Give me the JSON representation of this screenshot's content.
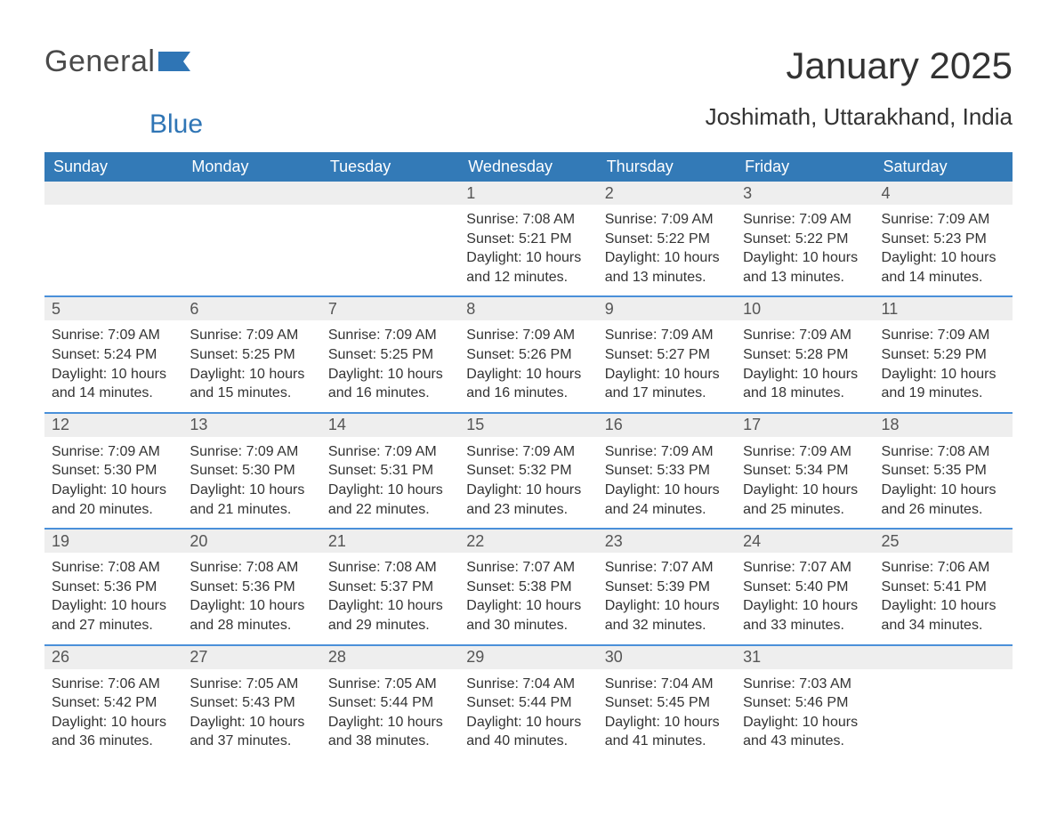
{
  "logo": {
    "line1": "General",
    "line2": "Blue"
  },
  "title": "January 2025",
  "location": "Joshimath, Uttarakhand, India",
  "colors": {
    "header_bg": "#337ab7",
    "header_text": "#ffffff",
    "row_divider": "#4a90d9",
    "date_bar_bg": "#eeeeee",
    "logo_blue": "#2f75b5"
  },
  "weekdays": [
    "Sunday",
    "Monday",
    "Tuesday",
    "Wednesday",
    "Thursday",
    "Friday",
    "Saturday"
  ],
  "weeks": [
    [
      {
        "date": "",
        "sunrise": "",
        "sunset": "",
        "daylight1": "",
        "daylight2": ""
      },
      {
        "date": "",
        "sunrise": "",
        "sunset": "",
        "daylight1": "",
        "daylight2": ""
      },
      {
        "date": "",
        "sunrise": "",
        "sunset": "",
        "daylight1": "",
        "daylight2": ""
      },
      {
        "date": "1",
        "sunrise": "Sunrise: 7:08 AM",
        "sunset": "Sunset: 5:21 PM",
        "daylight1": "Daylight: 10 hours",
        "daylight2": "and 12 minutes."
      },
      {
        "date": "2",
        "sunrise": "Sunrise: 7:09 AM",
        "sunset": "Sunset: 5:22 PM",
        "daylight1": "Daylight: 10 hours",
        "daylight2": "and 13 minutes."
      },
      {
        "date": "3",
        "sunrise": "Sunrise: 7:09 AM",
        "sunset": "Sunset: 5:22 PM",
        "daylight1": "Daylight: 10 hours",
        "daylight2": "and 13 minutes."
      },
      {
        "date": "4",
        "sunrise": "Sunrise: 7:09 AM",
        "sunset": "Sunset: 5:23 PM",
        "daylight1": "Daylight: 10 hours",
        "daylight2": "and 14 minutes."
      }
    ],
    [
      {
        "date": "5",
        "sunrise": "Sunrise: 7:09 AM",
        "sunset": "Sunset: 5:24 PM",
        "daylight1": "Daylight: 10 hours",
        "daylight2": "and 14 minutes."
      },
      {
        "date": "6",
        "sunrise": "Sunrise: 7:09 AM",
        "sunset": "Sunset: 5:25 PM",
        "daylight1": "Daylight: 10 hours",
        "daylight2": "and 15 minutes."
      },
      {
        "date": "7",
        "sunrise": "Sunrise: 7:09 AM",
        "sunset": "Sunset: 5:25 PM",
        "daylight1": "Daylight: 10 hours",
        "daylight2": "and 16 minutes."
      },
      {
        "date": "8",
        "sunrise": "Sunrise: 7:09 AM",
        "sunset": "Sunset: 5:26 PM",
        "daylight1": "Daylight: 10 hours",
        "daylight2": "and 16 minutes."
      },
      {
        "date": "9",
        "sunrise": "Sunrise: 7:09 AM",
        "sunset": "Sunset: 5:27 PM",
        "daylight1": "Daylight: 10 hours",
        "daylight2": "and 17 minutes."
      },
      {
        "date": "10",
        "sunrise": "Sunrise: 7:09 AM",
        "sunset": "Sunset: 5:28 PM",
        "daylight1": "Daylight: 10 hours",
        "daylight2": "and 18 minutes."
      },
      {
        "date": "11",
        "sunrise": "Sunrise: 7:09 AM",
        "sunset": "Sunset: 5:29 PM",
        "daylight1": "Daylight: 10 hours",
        "daylight2": "and 19 minutes."
      }
    ],
    [
      {
        "date": "12",
        "sunrise": "Sunrise: 7:09 AM",
        "sunset": "Sunset: 5:30 PM",
        "daylight1": "Daylight: 10 hours",
        "daylight2": "and 20 minutes."
      },
      {
        "date": "13",
        "sunrise": "Sunrise: 7:09 AM",
        "sunset": "Sunset: 5:30 PM",
        "daylight1": "Daylight: 10 hours",
        "daylight2": "and 21 minutes."
      },
      {
        "date": "14",
        "sunrise": "Sunrise: 7:09 AM",
        "sunset": "Sunset: 5:31 PM",
        "daylight1": "Daylight: 10 hours",
        "daylight2": "and 22 minutes."
      },
      {
        "date": "15",
        "sunrise": "Sunrise: 7:09 AM",
        "sunset": "Sunset: 5:32 PM",
        "daylight1": "Daylight: 10 hours",
        "daylight2": "and 23 minutes."
      },
      {
        "date": "16",
        "sunrise": "Sunrise: 7:09 AM",
        "sunset": "Sunset: 5:33 PM",
        "daylight1": "Daylight: 10 hours",
        "daylight2": "and 24 minutes."
      },
      {
        "date": "17",
        "sunrise": "Sunrise: 7:09 AM",
        "sunset": "Sunset: 5:34 PM",
        "daylight1": "Daylight: 10 hours",
        "daylight2": "and 25 minutes."
      },
      {
        "date": "18",
        "sunrise": "Sunrise: 7:08 AM",
        "sunset": "Sunset: 5:35 PM",
        "daylight1": "Daylight: 10 hours",
        "daylight2": "and 26 minutes."
      }
    ],
    [
      {
        "date": "19",
        "sunrise": "Sunrise: 7:08 AM",
        "sunset": "Sunset: 5:36 PM",
        "daylight1": "Daylight: 10 hours",
        "daylight2": "and 27 minutes."
      },
      {
        "date": "20",
        "sunrise": "Sunrise: 7:08 AM",
        "sunset": "Sunset: 5:36 PM",
        "daylight1": "Daylight: 10 hours",
        "daylight2": "and 28 minutes."
      },
      {
        "date": "21",
        "sunrise": "Sunrise: 7:08 AM",
        "sunset": "Sunset: 5:37 PM",
        "daylight1": "Daylight: 10 hours",
        "daylight2": "and 29 minutes."
      },
      {
        "date": "22",
        "sunrise": "Sunrise: 7:07 AM",
        "sunset": "Sunset: 5:38 PM",
        "daylight1": "Daylight: 10 hours",
        "daylight2": "and 30 minutes."
      },
      {
        "date": "23",
        "sunrise": "Sunrise: 7:07 AM",
        "sunset": "Sunset: 5:39 PM",
        "daylight1": "Daylight: 10 hours",
        "daylight2": "and 32 minutes."
      },
      {
        "date": "24",
        "sunrise": "Sunrise: 7:07 AM",
        "sunset": "Sunset: 5:40 PM",
        "daylight1": "Daylight: 10 hours",
        "daylight2": "and 33 minutes."
      },
      {
        "date": "25",
        "sunrise": "Sunrise: 7:06 AM",
        "sunset": "Sunset: 5:41 PM",
        "daylight1": "Daylight: 10 hours",
        "daylight2": "and 34 minutes."
      }
    ],
    [
      {
        "date": "26",
        "sunrise": "Sunrise: 7:06 AM",
        "sunset": "Sunset: 5:42 PM",
        "daylight1": "Daylight: 10 hours",
        "daylight2": "and 36 minutes."
      },
      {
        "date": "27",
        "sunrise": "Sunrise: 7:05 AM",
        "sunset": "Sunset: 5:43 PM",
        "daylight1": "Daylight: 10 hours",
        "daylight2": "and 37 minutes."
      },
      {
        "date": "28",
        "sunrise": "Sunrise: 7:05 AM",
        "sunset": "Sunset: 5:44 PM",
        "daylight1": "Daylight: 10 hours",
        "daylight2": "and 38 minutes."
      },
      {
        "date": "29",
        "sunrise": "Sunrise: 7:04 AM",
        "sunset": "Sunset: 5:44 PM",
        "daylight1": "Daylight: 10 hours",
        "daylight2": "and 40 minutes."
      },
      {
        "date": "30",
        "sunrise": "Sunrise: 7:04 AM",
        "sunset": "Sunset: 5:45 PM",
        "daylight1": "Daylight: 10 hours",
        "daylight2": "and 41 minutes."
      },
      {
        "date": "31",
        "sunrise": "Sunrise: 7:03 AM",
        "sunset": "Sunset: 5:46 PM",
        "daylight1": "Daylight: 10 hours",
        "daylight2": "and 43 minutes."
      },
      {
        "date": "",
        "sunrise": "",
        "sunset": "",
        "daylight1": "",
        "daylight2": ""
      }
    ]
  ]
}
